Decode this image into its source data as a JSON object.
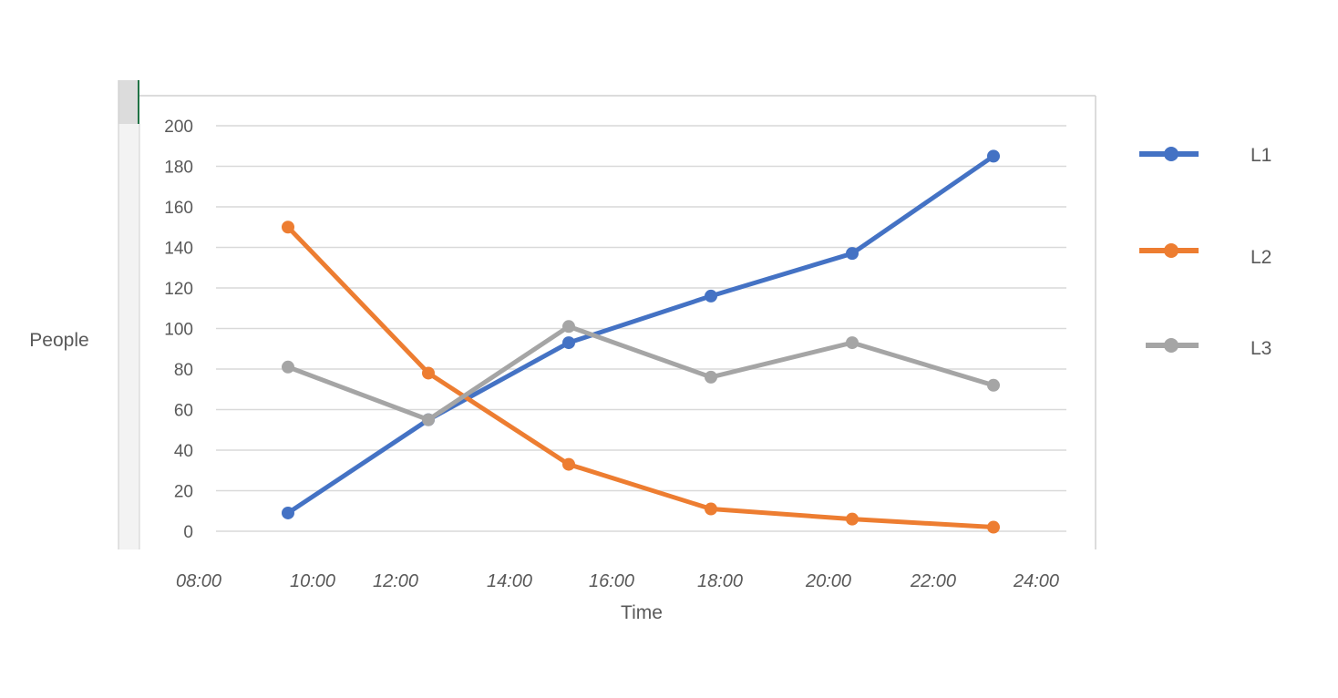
{
  "chart_data": {
    "type": "line",
    "title": "",
    "xlabel": "Time",
    "ylabel": "People",
    "ylim": [
      0,
      200
    ],
    "y_ticks": [
      "0",
      "20",
      "40",
      "60",
      "80",
      "100",
      "120",
      "140",
      "160",
      "180",
      "200"
    ],
    "x_ticks": [
      "08:00",
      "10:00",
      "12:00",
      "14:00",
      "16:00",
      "18:00",
      "20:00",
      "22:00",
      "24:00"
    ],
    "x": [
      "09:45",
      "12:45",
      "15:45",
      "18:45",
      "21:45",
      "24:45"
    ],
    "grid": true,
    "legend_position": "right",
    "series": [
      {
        "name": "L1",
        "color": "#4472c4",
        "values": [
          9,
          55,
          93,
          116,
          137,
          185
        ]
      },
      {
        "name": "L2",
        "color": "#ed7d31",
        "values": [
          150,
          78,
          33,
          11,
          6,
          2
        ]
      },
      {
        "name": "L3",
        "color": "#a5a5a5",
        "values": [
          81,
          55,
          101,
          76,
          93,
          72
        ]
      }
    ]
  }
}
